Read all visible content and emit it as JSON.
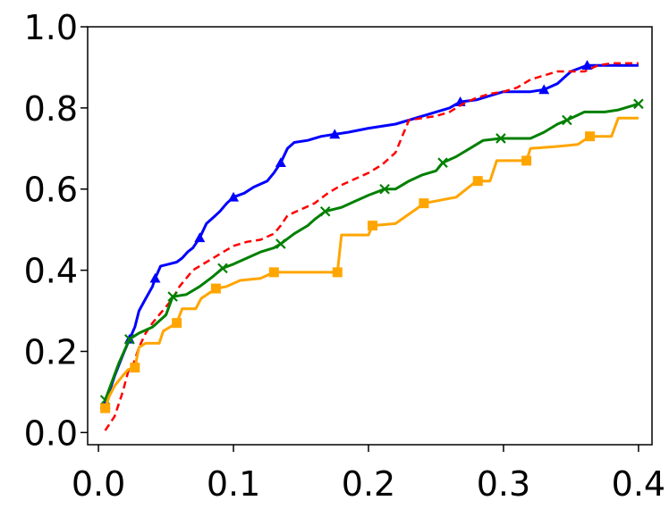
{
  "chart_data": {
    "type": "line",
    "title": "",
    "xlabel": "",
    "ylabel": "",
    "xlim": [
      -0.008,
      0.41
    ],
    "ylim": [
      -0.03,
      1.0
    ],
    "xticks": [
      {
        "value": 0.0,
        "label": "0.0"
      },
      {
        "value": 0.1,
        "label": "0.1"
      },
      {
        "value": 0.2,
        "label": "0.2"
      },
      {
        "value": 0.3,
        "label": "0.3"
      },
      {
        "value": 0.4,
        "label": "0.4"
      }
    ],
    "yticks": [
      {
        "value": 0.0,
        "label": "0.0"
      },
      {
        "value": 0.2,
        "label": "0.2"
      },
      {
        "value": 0.4,
        "label": "0.4"
      },
      {
        "value": 0.6,
        "label": "0.6"
      },
      {
        "value": 0.8,
        "label": "0.8"
      },
      {
        "value": 1.0,
        "label": "1.0"
      }
    ],
    "grid": false,
    "legend": "none",
    "series": [
      {
        "color": "#0000ff",
        "style": "solid",
        "marker": "triangle",
        "markers": [
          [
            0.005,
            0.07
          ],
          [
            0.023,
            0.23
          ],
          [
            0.042,
            0.38
          ],
          [
            0.075,
            0.48
          ],
          [
            0.1,
            0.58
          ],
          [
            0.135,
            0.665
          ],
          [
            0.175,
            0.735
          ],
          [
            0.268,
            0.815
          ],
          [
            0.33,
            0.845
          ],
          [
            0.362,
            0.905
          ]
        ],
        "points": [
          [
            0.005,
            0.07
          ],
          [
            0.012,
            0.14
          ],
          [
            0.018,
            0.19
          ],
          [
            0.023,
            0.23
          ],
          [
            0.027,
            0.26
          ],
          [
            0.03,
            0.3
          ],
          [
            0.035,
            0.33
          ],
          [
            0.04,
            0.36
          ],
          [
            0.042,
            0.38
          ],
          [
            0.046,
            0.41
          ],
          [
            0.052,
            0.415
          ],
          [
            0.058,
            0.42
          ],
          [
            0.062,
            0.43
          ],
          [
            0.066,
            0.445
          ],
          [
            0.07,
            0.455
          ],
          [
            0.075,
            0.48
          ],
          [
            0.08,
            0.515
          ],
          [
            0.085,
            0.53
          ],
          [
            0.09,
            0.545
          ],
          [
            0.095,
            0.565
          ],
          [
            0.1,
            0.58
          ],
          [
            0.108,
            0.59
          ],
          [
            0.115,
            0.605
          ],
          [
            0.125,
            0.62
          ],
          [
            0.13,
            0.64
          ],
          [
            0.135,
            0.665
          ],
          [
            0.14,
            0.7
          ],
          [
            0.145,
            0.715
          ],
          [
            0.155,
            0.72
          ],
          [
            0.165,
            0.73
          ],
          [
            0.175,
            0.735
          ],
          [
            0.185,
            0.74
          ],
          [
            0.2,
            0.75
          ],
          [
            0.22,
            0.76
          ],
          [
            0.23,
            0.77
          ],
          [
            0.24,
            0.78
          ],
          [
            0.25,
            0.79
          ],
          [
            0.26,
            0.8
          ],
          [
            0.268,
            0.815
          ],
          [
            0.28,
            0.82
          ],
          [
            0.29,
            0.83
          ],
          [
            0.3,
            0.84
          ],
          [
            0.31,
            0.84
          ],
          [
            0.32,
            0.84
          ],
          [
            0.33,
            0.845
          ],
          [
            0.34,
            0.86
          ],
          [
            0.35,
            0.89
          ],
          [
            0.362,
            0.905
          ],
          [
            0.375,
            0.905
          ],
          [
            0.4,
            0.905
          ]
        ]
      },
      {
        "color": "#ff0000",
        "style": "dashed",
        "marker": "none",
        "markers": [],
        "points": [
          [
            0.005,
            0.005
          ],
          [
            0.012,
            0.04
          ],
          [
            0.018,
            0.1
          ],
          [
            0.022,
            0.15
          ],
          [
            0.026,
            0.17
          ],
          [
            0.03,
            0.21
          ],
          [
            0.035,
            0.245
          ],
          [
            0.04,
            0.27
          ],
          [
            0.045,
            0.29
          ],
          [
            0.05,
            0.31
          ],
          [
            0.055,
            0.33
          ],
          [
            0.06,
            0.36
          ],
          [
            0.065,
            0.38
          ],
          [
            0.07,
            0.4
          ],
          [
            0.08,
            0.42
          ],
          [
            0.09,
            0.44
          ],
          [
            0.1,
            0.46
          ],
          [
            0.11,
            0.47
          ],
          [
            0.12,
            0.475
          ],
          [
            0.13,
            0.49
          ],
          [
            0.135,
            0.51
          ],
          [
            0.14,
            0.535
          ],
          [
            0.15,
            0.55
          ],
          [
            0.16,
            0.565
          ],
          [
            0.17,
            0.59
          ],
          [
            0.18,
            0.61
          ],
          [
            0.19,
            0.625
          ],
          [
            0.2,
            0.64
          ],
          [
            0.21,
            0.66
          ],
          [
            0.22,
            0.69
          ],
          [
            0.225,
            0.73
          ],
          [
            0.23,
            0.77
          ],
          [
            0.24,
            0.775
          ],
          [
            0.25,
            0.78
          ],
          [
            0.26,
            0.79
          ],
          [
            0.27,
            0.81
          ],
          [
            0.28,
            0.825
          ],
          [
            0.29,
            0.835
          ],
          [
            0.3,
            0.84
          ],
          [
            0.31,
            0.85
          ],
          [
            0.32,
            0.87
          ],
          [
            0.33,
            0.88
          ],
          [
            0.34,
            0.89
          ],
          [
            0.36,
            0.89
          ],
          [
            0.37,
            0.905
          ],
          [
            0.38,
            0.91
          ],
          [
            0.4,
            0.91
          ]
        ]
      },
      {
        "color": "#008000",
        "style": "solid",
        "marker": "x",
        "markers": [
          [
            0.005,
            0.08
          ],
          [
            0.023,
            0.23
          ],
          [
            0.055,
            0.335
          ],
          [
            0.092,
            0.405
          ],
          [
            0.135,
            0.465
          ],
          [
            0.168,
            0.545
          ],
          [
            0.212,
            0.6
          ],
          [
            0.255,
            0.665
          ],
          [
            0.298,
            0.725
          ],
          [
            0.347,
            0.77
          ],
          [
            0.4,
            0.81
          ]
        ],
        "points": [
          [
            0.005,
            0.08
          ],
          [
            0.015,
            0.17
          ],
          [
            0.023,
            0.23
          ],
          [
            0.03,
            0.245
          ],
          [
            0.04,
            0.26
          ],
          [
            0.05,
            0.29
          ],
          [
            0.055,
            0.335
          ],
          [
            0.065,
            0.34
          ],
          [
            0.075,
            0.36
          ],
          [
            0.085,
            0.385
          ],
          [
            0.092,
            0.405
          ],
          [
            0.1,
            0.415
          ],
          [
            0.11,
            0.43
          ],
          [
            0.12,
            0.445
          ],
          [
            0.13,
            0.455
          ],
          [
            0.135,
            0.465
          ],
          [
            0.145,
            0.49
          ],
          [
            0.155,
            0.51
          ],
          [
            0.16,
            0.525
          ],
          [
            0.168,
            0.545
          ],
          [
            0.18,
            0.555
          ],
          [
            0.19,
            0.57
          ],
          [
            0.2,
            0.585
          ],
          [
            0.212,
            0.6
          ],
          [
            0.22,
            0.6
          ],
          [
            0.23,
            0.62
          ],
          [
            0.24,
            0.635
          ],
          [
            0.25,
            0.645
          ],
          [
            0.255,
            0.665
          ],
          [
            0.265,
            0.68
          ],
          [
            0.275,
            0.7
          ],
          [
            0.285,
            0.72
          ],
          [
            0.298,
            0.725
          ],
          [
            0.31,
            0.725
          ],
          [
            0.32,
            0.725
          ],
          [
            0.33,
            0.74
          ],
          [
            0.34,
            0.76
          ],
          [
            0.347,
            0.77
          ],
          [
            0.36,
            0.79
          ],
          [
            0.375,
            0.79
          ],
          [
            0.385,
            0.795
          ],
          [
            0.395,
            0.805
          ],
          [
            0.4,
            0.81
          ]
        ]
      },
      {
        "color": "#ffa500",
        "style": "solid",
        "marker": "square",
        "markers": [
          [
            0.005,
            0.06
          ],
          [
            0.027,
            0.16
          ],
          [
            0.058,
            0.27
          ],
          [
            0.087,
            0.355
          ],
          [
            0.13,
            0.395
          ],
          [
            0.177,
            0.395
          ],
          [
            0.203,
            0.51
          ],
          [
            0.241,
            0.565
          ],
          [
            0.281,
            0.62
          ],
          [
            0.317,
            0.67
          ],
          [
            0.364,
            0.73
          ]
        ],
        "points": [
          [
            0.005,
            0.06
          ],
          [
            0.008,
            0.09
          ],
          [
            0.012,
            0.115
          ],
          [
            0.018,
            0.14
          ],
          [
            0.022,
            0.155
          ],
          [
            0.027,
            0.16
          ],
          [
            0.03,
            0.21
          ],
          [
            0.035,
            0.22
          ],
          [
            0.045,
            0.22
          ],
          [
            0.048,
            0.25
          ],
          [
            0.058,
            0.27
          ],
          [
            0.062,
            0.305
          ],
          [
            0.072,
            0.305
          ],
          [
            0.076,
            0.33
          ],
          [
            0.087,
            0.355
          ],
          [
            0.095,
            0.36
          ],
          [
            0.105,
            0.375
          ],
          [
            0.12,
            0.38
          ],
          [
            0.13,
            0.395
          ],
          [
            0.177,
            0.395
          ],
          [
            0.18,
            0.487
          ],
          [
            0.2,
            0.487
          ],
          [
            0.203,
            0.51
          ],
          [
            0.22,
            0.515
          ],
          [
            0.235,
            0.55
          ],
          [
            0.241,
            0.565
          ],
          [
            0.265,
            0.58
          ],
          [
            0.28,
            0.62
          ],
          [
            0.281,
            0.62
          ],
          [
            0.29,
            0.62
          ],
          [
            0.295,
            0.67
          ],
          [
            0.317,
            0.67
          ],
          [
            0.32,
            0.7
          ],
          [
            0.34,
            0.705
          ],
          [
            0.355,
            0.71
          ],
          [
            0.364,
            0.73
          ],
          [
            0.38,
            0.73
          ],
          [
            0.385,
            0.775
          ],
          [
            0.4,
            0.775
          ]
        ]
      }
    ]
  }
}
